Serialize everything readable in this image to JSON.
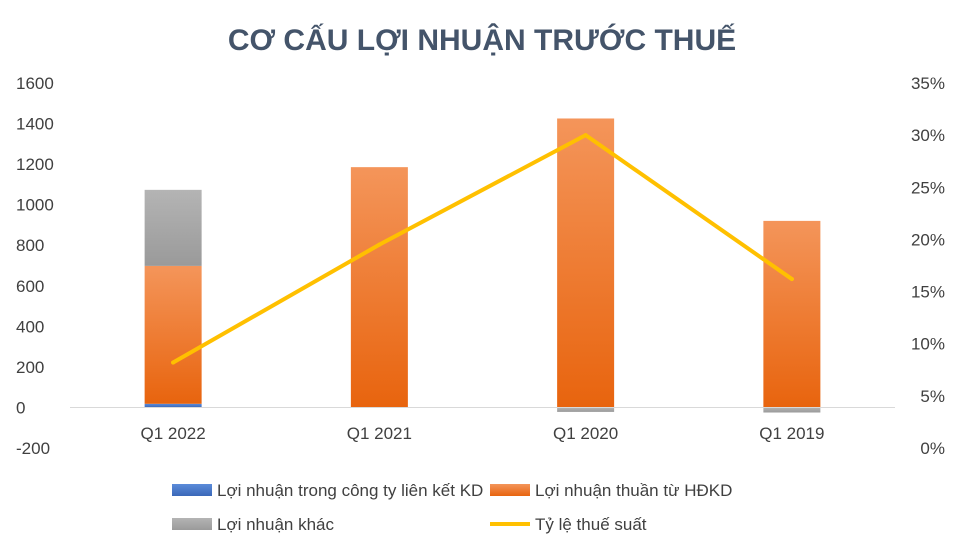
{
  "chart_data": {
    "type": "bar",
    "title": "CƠ CẤU LỢI NHUẬN TRƯỚC THUẾ",
    "categories": [
      "Q1 2022",
      "Q1 2021",
      "Q1 2020",
      "Q1 2019"
    ],
    "series": [
      {
        "name": "Lợi nhuận trong công ty liên kết KD",
        "type": "bar",
        "axis": "left",
        "color": "#4472C4",
        "values": [
          18,
          0,
          0,
          0
        ]
      },
      {
        "name": "Lợi nhuận thuần từ HĐKD",
        "type": "bar",
        "axis": "left",
        "color": "#F47920",
        "values": [
          680,
          1185,
          1425,
          920
        ]
      },
      {
        "name": "Lợi nhuận khác",
        "type": "bar",
        "axis": "left",
        "color": "#A6A6A6",
        "values": [
          375,
          0,
          -22,
          -25
        ]
      },
      {
        "name": "Tỷ lệ thuế suất",
        "type": "line",
        "axis": "right",
        "color": "#FFC000",
        "values": [
          8.2,
          19.5,
          30.0,
          16.2
        ]
      }
    ],
    "y_left": {
      "min": -200,
      "max": 1600,
      "step": 200,
      "ticks": [
        "1600",
        "1400",
        "1200",
        "1000",
        "800",
        "600",
        "400",
        "200",
        "0",
        "-200"
      ]
    },
    "y_right": {
      "min": 0,
      "max": 35,
      "step": 5,
      "unit": "%",
      "ticks": [
        "35%",
        "30%",
        "25%",
        "20%",
        "15%",
        "10%",
        "5%",
        "0%"
      ]
    },
    "legend_position": "bottom",
    "grid": false
  }
}
